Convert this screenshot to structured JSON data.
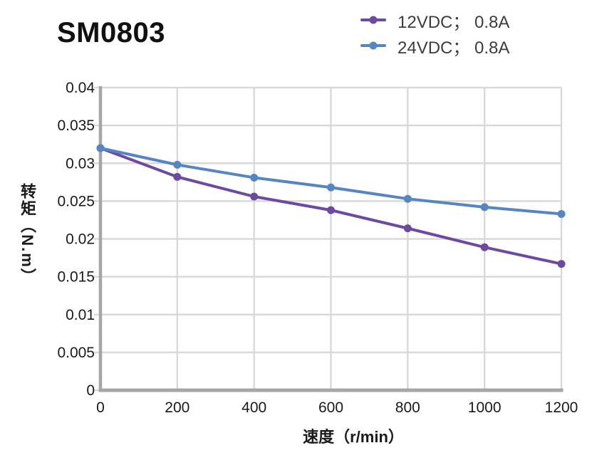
{
  "title": "SM0803",
  "legend": {
    "items": [
      {
        "label": "12VDC； 0.8A",
        "color": "#6d4aa1"
      },
      {
        "label": "24VDC； 0.8A",
        "color": "#5586c1"
      }
    ]
  },
  "chart_data": {
    "type": "line",
    "title": "SM0803",
    "xlabel": "速度（r/min）",
    "ylabel": "转矩（N.m）",
    "x": [
      0,
      200,
      400,
      600,
      800,
      1000,
      1200
    ],
    "series": [
      {
        "name": "12VDC； 0.8A",
        "color": "#6d4aa1",
        "values": [
          0.032,
          0.0282,
          0.0256,
          0.0238,
          0.0214,
          0.0189,
          0.0167
        ]
      },
      {
        "name": "24VDC； 0.8A",
        "color": "#5586c1",
        "values": [
          0.032,
          0.0298,
          0.0281,
          0.0268,
          0.0253,
          0.0242,
          0.0233
        ]
      }
    ],
    "xlim": [
      0,
      1200
    ],
    "ylim": [
      0,
      0.04
    ],
    "xticks": [
      "0",
      "200",
      "400",
      "600",
      "800",
      "1000",
      "1200"
    ],
    "yticks": [
      "0",
      "0.005",
      "0.01",
      "0.015",
      "0.02",
      "0.025",
      "0.03",
      "0.035",
      "0.04"
    ],
    "grid": true,
    "legend_position": "top-right",
    "colors": {
      "grid": "#d9d9d9",
      "axis": "#a6a6a6",
      "tick_text": "#1a1a1a"
    }
  }
}
